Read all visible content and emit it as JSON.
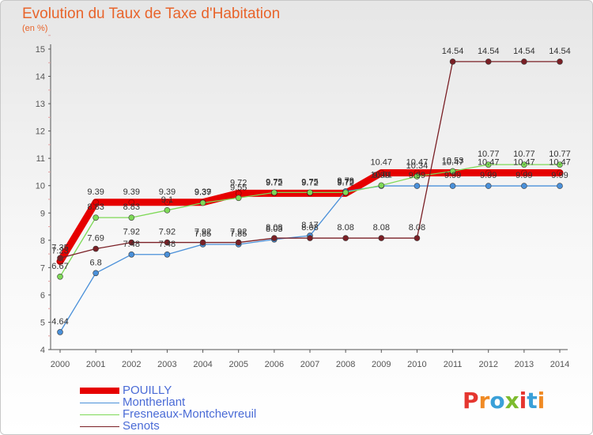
{
  "header": {
    "title": "Evolution du Taux de Taxe d'Habitation",
    "subtitle": "(en %)"
  },
  "logo": {
    "text": "Proxiti",
    "colors": [
      "#e5362f",
      "#f08a24",
      "#3aa0d8",
      "#7dbb2e",
      "#e5362f",
      "#3aa0d8",
      "#f08a24"
    ]
  },
  "chart_data": {
    "type": "line",
    "title": "Evolution du Taux de Taxe d'Habitation",
    "ylabel": "(en %)",
    "xlabel": "",
    "x": [
      "2000",
      "2001",
      "2002",
      "2003",
      "2004",
      "2005",
      "2006",
      "2007",
      "2008",
      "2009",
      "2010",
      "2011",
      "2012",
      "2013",
      "2014"
    ],
    "ylim": [
      4,
      15
    ],
    "yticks": [
      4,
      5,
      6,
      7,
      8,
      9,
      10,
      11,
      12,
      13,
      14,
      15
    ],
    "grid": false,
    "legend_position": "bottom-left",
    "series": [
      {
        "name": "POUILLY",
        "color": "#e60000",
        "values": [
          7.23,
          9.39,
          9.39,
          9.39,
          9.39,
          9.72,
          9.72,
          9.72,
          9.72,
          10.47,
          10.47,
          10.47,
          10.47,
          10.47,
          10.47
        ],
        "labels": [
          "7.23",
          "9.39",
          "9.39",
          "9.39",
          "9.39",
          "9.72",
          "9.72",
          "9.72",
          "9.72",
          "10.47",
          "10.47",
          "10.47",
          "10.47",
          "10.47",
          "10.47"
        ]
      },
      {
        "name": "Montherlant",
        "color": "#4a90d9",
        "values": [
          4.64,
          6.8,
          7.48,
          7.48,
          7.85,
          7.85,
          8.03,
          8.17,
          9.79,
          9.99,
          9.99,
          9.99,
          9.99,
          9.99,
          9.99
        ],
        "labels": [
          "4.64",
          "6.8",
          "7.48",
          "7.48",
          "7.85",
          "7.85",
          "8.03",
          "8.17",
          "9.79",
          "9.99",
          "9.99",
          "9.99",
          "9.99",
          "9.99",
          "9.99"
        ]
      },
      {
        "name": "Fresneaux-Montchevreuil",
        "color": "#7ed957",
        "values": [
          6.67,
          8.83,
          8.83,
          9.1,
          9.37,
          9.55,
          9.75,
          9.75,
          9.75,
          10.01,
          10.34,
          10.53,
          10.77,
          10.77,
          10.77
        ],
        "labels": [
          "6.67",
          "8.83",
          "8.83",
          "9.1",
          "9.37",
          "9.55",
          "9.75",
          "9.75",
          "9.75",
          "10.01",
          "10.34",
          "10.53",
          "10.77",
          "10.77",
          "10.77"
        ]
      },
      {
        "name": "Senots",
        "color": "#7a1f25",
        "values": [
          7.35,
          7.69,
          7.92,
          7.92,
          7.92,
          7.92,
          8.08,
          8.08,
          8.08,
          8.08,
          8.08,
          14.54,
          14.54,
          14.54,
          14.54
        ],
        "labels": [
          "7.35",
          "7.69",
          "7.92",
          "7.92",
          "7.92",
          "7.92",
          "8.08",
          "8.08",
          "8.08",
          "8.08",
          "8.08",
          "14.54",
          "14.54",
          "14.54",
          "14.54"
        ]
      }
    ]
  }
}
